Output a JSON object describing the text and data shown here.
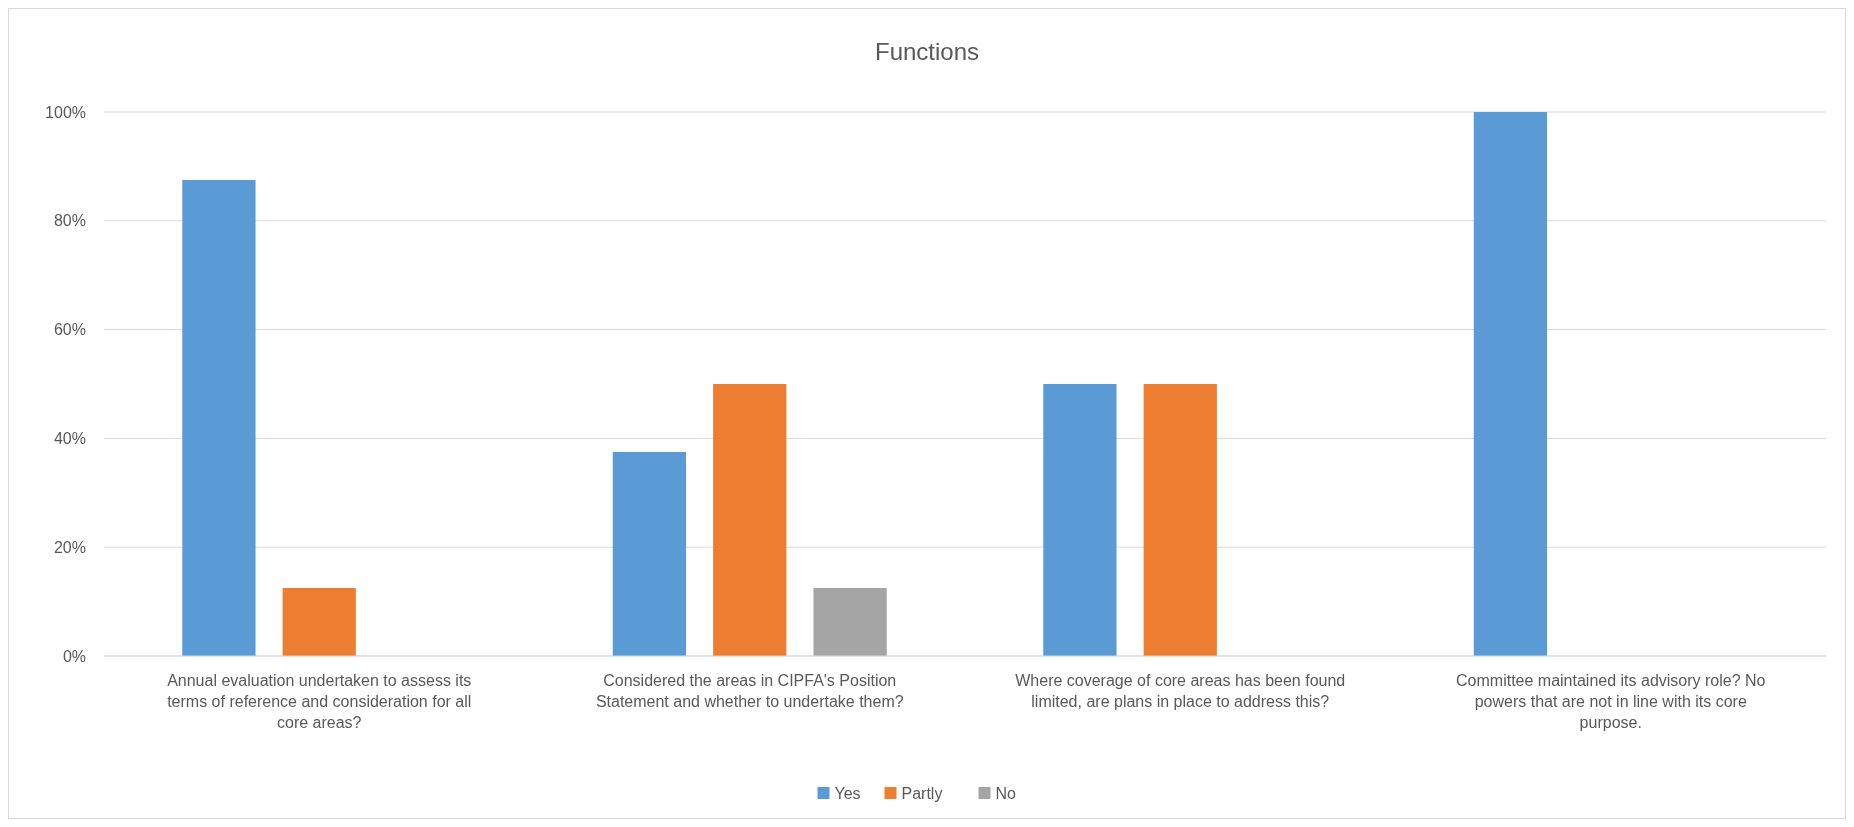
{
  "chart_data": {
    "type": "bar",
    "title": "Functions",
    "categories": [
      "Annual evaluation undertaken to assess its terms of reference and consideration for all core areas?",
      "Considered the areas in CIPFA's Position Statement and whether to undertake them?",
      "Where coverage of core areas has been found limited, are plans in place to address this?",
      "Committee maintained its advisory role? No powers that are not in line with its core purpose."
    ],
    "series": [
      {
        "name": "Yes",
        "color": "#5b9bd5",
        "values": [
          87.5,
          37.5,
          50,
          100
        ]
      },
      {
        "name": "Partly",
        "color": "#ed7d31",
        "values": [
          12.5,
          50,
          50,
          0
        ]
      },
      {
        "name": "No",
        "color": "#a5a5a5",
        "values": [
          0,
          12.5,
          0,
          0
        ]
      }
    ],
    "ylim": [
      0,
      100
    ],
    "yticks": [
      {
        "value": 0,
        "label": "0%"
      },
      {
        "value": 20,
        "label": "20%"
      },
      {
        "value": 40,
        "label": "40%"
      },
      {
        "value": 60,
        "label": "60%"
      },
      {
        "value": 80,
        "label": "80%"
      },
      {
        "value": 100,
        "label": "100%"
      }
    ],
    "grid": "y",
    "legend": "bottom"
  }
}
